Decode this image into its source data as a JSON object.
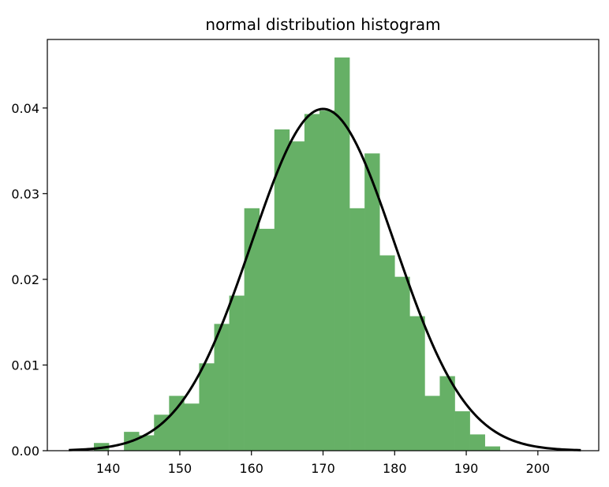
{
  "chart_data": {
    "type": "bar",
    "title": "normal distribution histogram",
    "xlabel": "",
    "ylabel": "",
    "xlim": [
      131.5,
      208.5
    ],
    "ylim": [
      0,
      0.048
    ],
    "xticks": [
      140,
      150,
      160,
      170,
      180,
      190,
      200
    ],
    "xtick_labels": [
      "140",
      "150",
      "160",
      "170",
      "180",
      "190",
      "200"
    ],
    "yticks": [
      0,
      0.01,
      0.02,
      0.03,
      0.04
    ],
    "ytick_labels": [
      "0.00",
      "0.01",
      "0.02",
      "0.03",
      "0.04"
    ],
    "grid": false,
    "bar_color": "#66b066",
    "curve_color": "#000000",
    "bins": {
      "edges": [
        138.0,
        140.1,
        142.2,
        144.3,
        146.4,
        148.5,
        150.6,
        152.7,
        154.8,
        156.9,
        159.0,
        161.1,
        163.2,
        165.3,
        167.4,
        169.5,
        171.6,
        173.7,
        175.8,
        177.9,
        180.0,
        182.1,
        184.2,
        186.3,
        188.4,
        190.5,
        192.6,
        194.7,
        196.8
      ],
      "density": [
        0.0009,
        0.0,
        0.0022,
        0.0018,
        0.0042,
        0.0064,
        0.0055,
        0.0102,
        0.0148,
        0.0181,
        0.0283,
        0.0259,
        0.0375,
        0.0361,
        0.0393,
        0.0397,
        0.0459,
        0.0283,
        0.0347,
        0.0228,
        0.0203,
        0.0157,
        0.0064,
        0.0087,
        0.0046,
        0.0019,
        0.0005,
        0.0
      ]
    },
    "series": [
      {
        "type": "line",
        "mu": 170,
        "sigma": 10,
        "x_range": [
          134.5,
          206.0
        ]
      }
    ]
  }
}
